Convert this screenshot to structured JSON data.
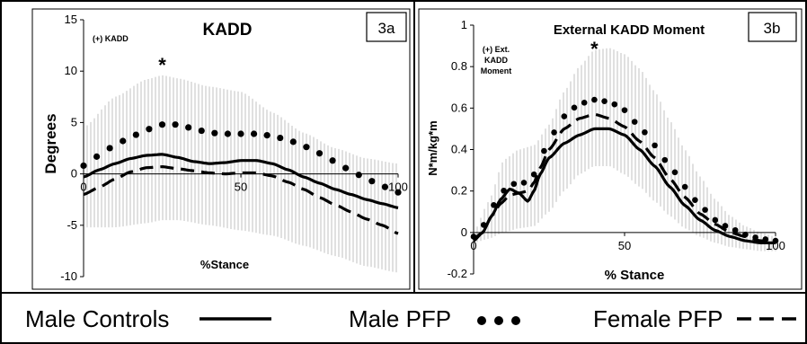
{
  "chart_data": [
    {
      "type": "line",
      "panel_label": "3a",
      "title": "KADD",
      "xlabel": "%Stance",
      "ylabel": "Degrees",
      "annotation": "(+) KADD",
      "significance_marker": "*",
      "significance_x": 25,
      "xlim": [
        0,
        100
      ],
      "ylim": [
        -10,
        15
      ],
      "xticks": [
        0,
        50,
        100
      ],
      "yticks": [
        -10,
        -5,
        0,
        5,
        10,
        15
      ],
      "grid": false,
      "legend": "bottom",
      "sd_band": {
        "x": [
          0,
          10,
          20,
          25,
          30,
          40,
          50,
          60,
          70,
          80,
          90,
          100
        ],
        "upper": [
          4.5,
          7.5,
          9.2,
          9.6,
          9.3,
          8.5,
          8.0,
          6.0,
          4.0,
          2.5,
          1.5,
          1.0
        ],
        "lower": [
          -5.2,
          -5.2,
          -4.8,
          -4.5,
          -4.5,
          -5.0,
          -5.5,
          -6.0,
          -7.0,
          -8.0,
          -9.0,
          -9.6
        ]
      },
      "series": [
        {
          "name": "Male Controls",
          "style": "solid",
          "x": [
            0,
            5,
            10,
            15,
            20,
            25,
            30,
            35,
            40,
            45,
            50,
            55,
            60,
            65,
            70,
            75,
            80,
            85,
            90,
            95,
            100
          ],
          "y": [
            -0.3,
            0.4,
            1.0,
            1.5,
            1.8,
            1.9,
            1.6,
            1.2,
            1.0,
            1.1,
            1.3,
            1.3,
            1.0,
            0.4,
            -0.3,
            -0.9,
            -1.5,
            -2.0,
            -2.5,
            -2.9,
            -3.3
          ]
        },
        {
          "name": "Male PFP",
          "style": "dotted",
          "x": [
            0,
            5,
            10,
            15,
            20,
            25,
            30,
            35,
            40,
            45,
            50,
            55,
            60,
            65,
            70,
            75,
            80,
            85,
            90,
            95,
            100
          ],
          "y": [
            0.8,
            1.8,
            2.8,
            3.6,
            4.3,
            4.8,
            4.8,
            4.4,
            4.0,
            3.9,
            3.9,
            3.9,
            3.7,
            3.3,
            2.7,
            2.0,
            1.2,
            0.3,
            -0.5,
            -1.2,
            -1.8
          ]
        },
        {
          "name": "Female PFP",
          "style": "dashed",
          "x": [
            0,
            5,
            10,
            15,
            20,
            25,
            30,
            35,
            40,
            45,
            50,
            55,
            60,
            65,
            70,
            75,
            80,
            85,
            90,
            95,
            100
          ],
          "y": [
            -2.0,
            -1.3,
            -0.5,
            0.2,
            0.6,
            0.7,
            0.5,
            0.3,
            0.1,
            0.0,
            0.1,
            0.1,
            -0.2,
            -0.8,
            -1.5,
            -2.3,
            -3.0,
            -3.7,
            -4.4,
            -5.0,
            -5.8
          ]
        }
      ]
    },
    {
      "type": "line",
      "panel_label": "3b",
      "title": "External KADD Moment",
      "xlabel": "% Stance",
      "ylabel": "N*m/kg*m",
      "annotation_lines": [
        "(+) Ext.",
        "KADD",
        "Moment"
      ],
      "significance_marker": "*",
      "significance_x": 40,
      "xlim": [
        0,
        100
      ],
      "ylim": [
        -0.2,
        1.0
      ],
      "xticks": [
        0,
        50,
        100
      ],
      "yticks": [
        -0.2,
        0,
        0.2,
        0.4,
        0.6,
        0.8,
        1.0
      ],
      "ytick_labels": [
        "-0.2",
        "0",
        "0.2",
        "0.4",
        "0.6",
        "0.8",
        "1"
      ],
      "grid": false,
      "legend": "bottom",
      "sd_band": {
        "x": [
          0,
          5,
          10,
          15,
          20,
          25,
          30,
          35,
          40,
          45,
          50,
          55,
          60,
          65,
          70,
          75,
          80,
          85,
          90,
          95,
          100
        ],
        "upper": [
          0.0,
          0.15,
          0.35,
          0.4,
          0.42,
          0.52,
          0.68,
          0.8,
          0.88,
          0.89,
          0.86,
          0.79,
          0.68,
          0.54,
          0.4,
          0.27,
          0.16,
          0.08,
          0.03,
          0.0,
          -0.02
        ],
        "lower": [
          -0.05,
          -0.03,
          0.0,
          0.02,
          0.03,
          0.1,
          0.2,
          0.28,
          0.32,
          0.32,
          0.28,
          0.22,
          0.15,
          0.08,
          0.02,
          -0.02,
          -0.05,
          -0.07,
          -0.08,
          -0.09,
          -0.09
        ]
      },
      "series": [
        {
          "name": "Male Controls",
          "style": "solid",
          "x": [
            0,
            3,
            6,
            9,
            12,
            15,
            18,
            20,
            22,
            25,
            30,
            35,
            40,
            45,
            50,
            55,
            60,
            65,
            70,
            75,
            80,
            85,
            90,
            95,
            100
          ],
          "y": [
            -0.03,
            0.0,
            0.08,
            0.16,
            0.21,
            0.19,
            0.15,
            0.2,
            0.28,
            0.36,
            0.43,
            0.47,
            0.5,
            0.5,
            0.47,
            0.4,
            0.32,
            0.22,
            0.13,
            0.06,
            0.01,
            -0.02,
            -0.04,
            -0.05,
            -0.05
          ]
        },
        {
          "name": "Male PFP",
          "style": "dotted",
          "x": [
            0,
            3,
            6,
            9,
            12,
            15,
            18,
            20,
            22,
            25,
            30,
            35,
            40,
            45,
            50,
            55,
            60,
            65,
            70,
            75,
            80,
            85,
            90,
            95,
            100
          ],
          "y": [
            -0.02,
            0.03,
            0.12,
            0.19,
            0.23,
            0.24,
            0.24,
            0.28,
            0.35,
            0.45,
            0.56,
            0.62,
            0.64,
            0.63,
            0.59,
            0.51,
            0.42,
            0.32,
            0.22,
            0.13,
            0.06,
            0.02,
            -0.01,
            -0.03,
            -0.04
          ]
        },
        {
          "name": "Female PFP",
          "style": "dashed",
          "x": [
            0,
            3,
            6,
            9,
            12,
            15,
            18,
            20,
            22,
            25,
            30,
            35,
            40,
            45,
            50,
            55,
            60,
            65,
            70,
            75,
            80,
            85,
            90,
            95,
            100
          ],
          "y": [
            -0.04,
            0.0,
            0.08,
            0.14,
            0.18,
            0.19,
            0.2,
            0.24,
            0.31,
            0.4,
            0.5,
            0.55,
            0.57,
            0.55,
            0.51,
            0.44,
            0.36,
            0.26,
            0.17,
            0.09,
            0.04,
            0.0,
            -0.02,
            -0.04,
            -0.04
          ]
        }
      ]
    }
  ],
  "legend": {
    "items": [
      {
        "label": "Male Controls",
        "style": "solid"
      },
      {
        "label": "Male PFP",
        "style": "dotted"
      },
      {
        "label": "Female PFP",
        "style": "dashed"
      }
    ]
  }
}
